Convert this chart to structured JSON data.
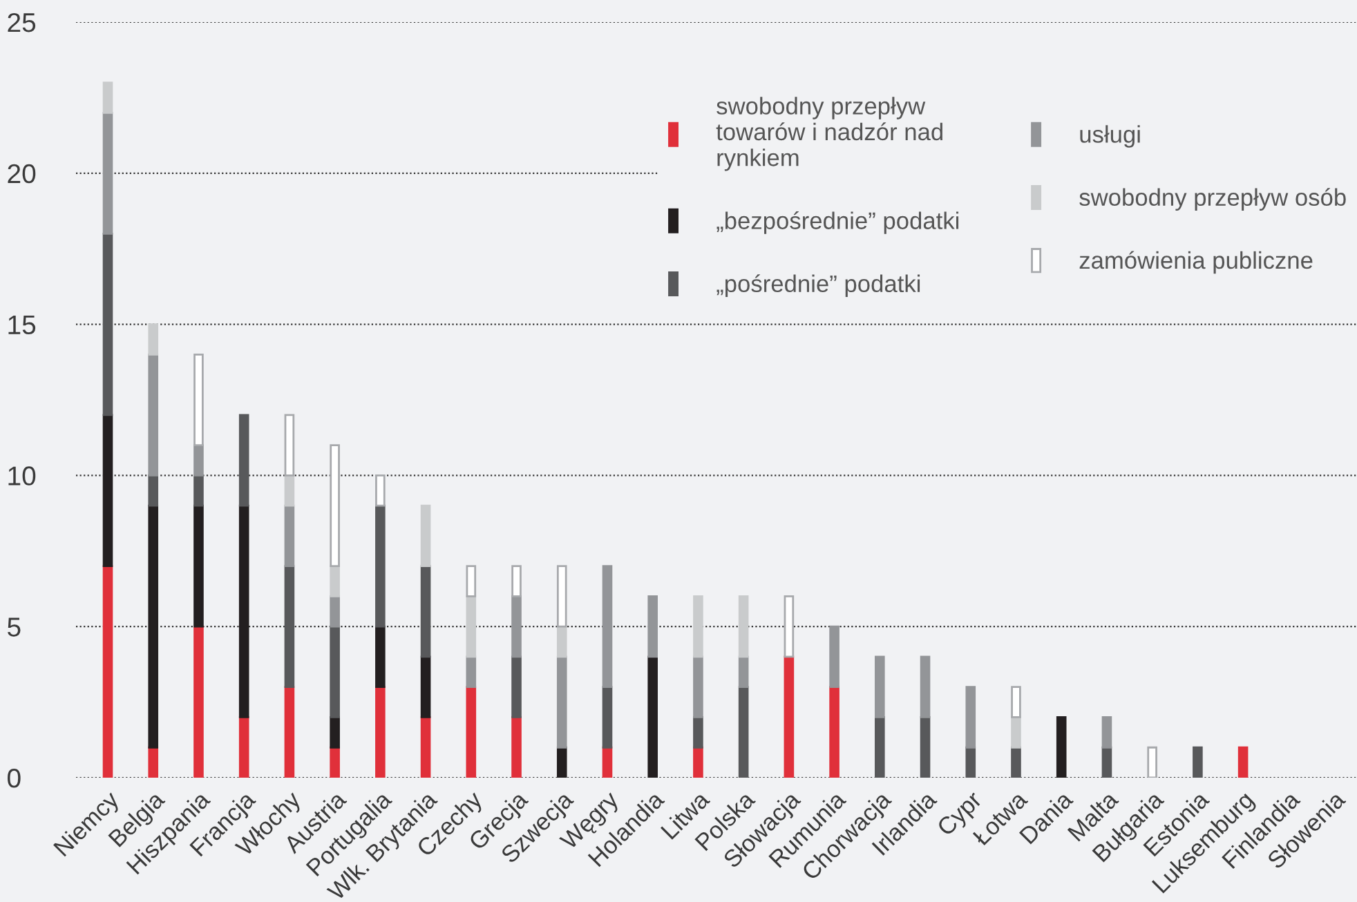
{
  "chart_data": {
    "type": "bar",
    "stacked": true,
    "categories": [
      "Niemcy",
      "Belgia",
      "Hiszpania",
      "Francja",
      "Włochy",
      "Austria",
      "Portugalia",
      "Wlk. Brytania",
      "Czechy",
      "Grecja",
      "Szwecja",
      "Węgry",
      "Holandia",
      "Litwa",
      "Polska",
      "Słowacja",
      "Rumunia",
      "Chorwacja",
      "Irlandia",
      "Cypr",
      "Łotwa",
      "Dania",
      "Malta",
      "Bułgaria",
      "Estonia",
      "Luksemburg",
      "Finlandia",
      "Słowenia"
    ],
    "series": [
      {
        "name": "swobodny przepływ\ntowarów i nadzór nad\nrynkiem",
        "color": "#e0303a",
        "values": [
          7,
          1,
          5,
          2,
          3,
          1,
          3,
          2,
          3,
          2,
          0,
          1,
          0,
          1,
          0,
          4,
          3,
          0,
          0,
          0,
          0,
          0,
          0,
          0,
          0,
          1,
          0,
          0
        ]
      },
      {
        "name": "„bezpośrednie” podatki",
        "color": "#231f20",
        "values": [
          5,
          8,
          4,
          7,
          0,
          1,
          2,
          2,
          0,
          0,
          1,
          0,
          4,
          0,
          0,
          0,
          0,
          0,
          0,
          0,
          0,
          2,
          0,
          0,
          0,
          0,
          0,
          0
        ]
      },
      {
        "name": "„pośrednie” podatki",
        "color": "#58595b",
        "values": [
          6,
          1,
          1,
          3,
          4,
          3,
          4,
          3,
          0,
          2,
          0,
          2,
          0,
          1,
          3,
          0,
          0,
          2,
          2,
          1,
          1,
          0,
          1,
          0,
          1,
          0,
          0,
          0
        ]
      },
      {
        "name": "usługi",
        "color": "#939598",
        "values": [
          4,
          4,
          1,
          0,
          2,
          1,
          0,
          0,
          1,
          2,
          3,
          4,
          2,
          2,
          1,
          0,
          2,
          2,
          2,
          2,
          0,
          0,
          1,
          0,
          0,
          0,
          0,
          0
        ]
      },
      {
        "name": "swobodny przepływ osób",
        "color": "#c9cbcc",
        "values": [
          1,
          1,
          0,
          0,
          1,
          1,
          0,
          2,
          2,
          0,
          1,
          0,
          0,
          2,
          2,
          0,
          0,
          0,
          0,
          0,
          1,
          0,
          0,
          0,
          0,
          0,
          0,
          0
        ]
      },
      {
        "name": "zamówienia publiczne",
        "color": "#ffffff",
        "values": [
          0,
          0,
          3,
          0,
          2,
          4,
          1,
          0,
          1,
          1,
          2,
          0,
          0,
          0,
          0,
          2,
          0,
          0,
          0,
          0,
          1,
          0,
          0,
          1,
          0,
          0,
          0,
          0
        ]
      }
    ],
    "ylim": [
      0,
      25
    ],
    "yticks": [
      0,
      5,
      10,
      15,
      20,
      25
    ],
    "grid": "y",
    "legend": "top right"
  }
}
